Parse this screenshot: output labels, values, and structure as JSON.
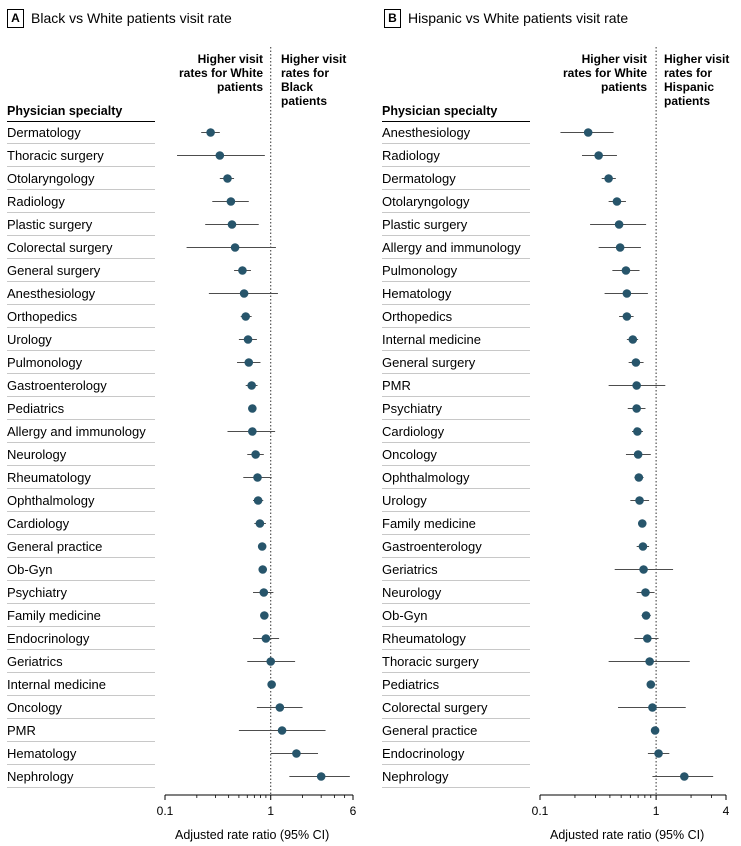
{
  "chart_data": [
    {
      "type": "forest",
      "panel_label": "A",
      "title": "Black vs White patients visit rate",
      "column_header": "Physician specialty",
      "favor_left": "Higher visit rates for White patients",
      "favor_right": "Higher visit rates for Black patients",
      "xlabel": "Adjusted rate ratio (95% CI)",
      "xscale": "log",
      "xlim": [
        0.1,
        6
      ],
      "xticks": [
        0.1,
        1,
        6
      ],
      "xtick_labels": [
        "0.1",
        "1",
        "6"
      ],
      "reference_line": 1,
      "rows": [
        {
          "label": "Dermatology",
          "estimate": 0.27,
          "ci_low": 0.22,
          "ci_high": 0.33
        },
        {
          "label": "Thoracic surgery",
          "estimate": 0.33,
          "ci_low": 0.13,
          "ci_high": 0.88
        },
        {
          "label": "Otolaryngology",
          "estimate": 0.39,
          "ci_low": 0.33,
          "ci_high": 0.45
        },
        {
          "label": "Radiology",
          "estimate": 0.42,
          "ci_low": 0.28,
          "ci_high": 0.62
        },
        {
          "label": "Plastic surgery",
          "estimate": 0.43,
          "ci_low": 0.24,
          "ci_high": 0.77
        },
        {
          "label": "Colorectal surgery",
          "estimate": 0.46,
          "ci_low": 0.16,
          "ci_high": 1.12
        },
        {
          "label": "General surgery",
          "estimate": 0.54,
          "ci_low": 0.45,
          "ci_high": 0.65
        },
        {
          "label": "Anesthesiology",
          "estimate": 0.56,
          "ci_low": 0.26,
          "ci_high": 1.17
        },
        {
          "label": "Orthopedics",
          "estimate": 0.58,
          "ci_low": 0.52,
          "ci_high": 0.66
        },
        {
          "label": "Urology",
          "estimate": 0.61,
          "ci_low": 0.5,
          "ci_high": 0.74
        },
        {
          "label": "Pulmonology",
          "estimate": 0.62,
          "ci_low": 0.48,
          "ci_high": 0.8
        },
        {
          "label": "Gastroenterology",
          "estimate": 0.66,
          "ci_low": 0.58,
          "ci_high": 0.75
        },
        {
          "label": "Pediatrics",
          "estimate": 0.67,
          "ci_low": 0.62,
          "ci_high": 0.72
        },
        {
          "label": "Allergy and immunology",
          "estimate": 0.67,
          "ci_low": 0.39,
          "ci_high": 1.1
        },
        {
          "label": "Neurology",
          "estimate": 0.72,
          "ci_low": 0.6,
          "ci_high": 0.86
        },
        {
          "label": "Rheumatology",
          "estimate": 0.75,
          "ci_low": 0.55,
          "ci_high": 1.02
        },
        {
          "label": "Ophthalmology",
          "estimate": 0.76,
          "ci_low": 0.68,
          "ci_high": 0.85
        },
        {
          "label": "Cardiology",
          "estimate": 0.79,
          "ci_low": 0.7,
          "ci_high": 0.9
        },
        {
          "label": "General practice",
          "estimate": 0.83,
          "ci_low": 0.79,
          "ci_high": 0.88
        },
        {
          "label": "Ob-Gyn",
          "estimate": 0.84,
          "ci_low": 0.77,
          "ci_high": 0.92
        },
        {
          "label": "Psychiatry",
          "estimate": 0.86,
          "ci_low": 0.68,
          "ci_high": 1.06
        },
        {
          "label": "Family medicine",
          "estimate": 0.87,
          "ci_low": 0.8,
          "ci_high": 0.94
        },
        {
          "label": "Endocrinology",
          "estimate": 0.9,
          "ci_low": 0.68,
          "ci_high": 1.2
        },
        {
          "label": "Geriatrics",
          "estimate": 1.0,
          "ci_low": 0.6,
          "ci_high": 1.7
        },
        {
          "label": "Internal medicine",
          "estimate": 1.02,
          "ci_low": 0.94,
          "ci_high": 1.1
        },
        {
          "label": "Oncology",
          "estimate": 1.22,
          "ci_low": 0.74,
          "ci_high": 2.0
        },
        {
          "label": "PMR",
          "estimate": 1.28,
          "ci_low": 0.5,
          "ci_high": 3.3
        },
        {
          "label": "Hematology",
          "estimate": 1.75,
          "ci_low": 1.0,
          "ci_high": 2.8
        },
        {
          "label": "Nephrology",
          "estimate": 3.0,
          "ci_low": 1.5,
          "ci_high": 5.6
        }
      ]
    },
    {
      "type": "forest",
      "panel_label": "B",
      "title": "Hispanic vs White patients visit rate",
      "column_header": "Physician specialty",
      "favor_left": "Higher visit rates for White patients",
      "favor_right": "Higher visit rates for Hispanic patients",
      "xlabel": "Adjusted rate ratio (95% CI)",
      "xscale": "log",
      "xlim": [
        0.1,
        4
      ],
      "xticks": [
        0.1,
        1,
        4
      ],
      "xtick_labels": [
        "0.1",
        "1",
        "4"
      ],
      "reference_line": 1,
      "rows": [
        {
          "label": "Anesthesiology",
          "estimate": 0.26,
          "ci_low": 0.15,
          "ci_high": 0.43
        },
        {
          "label": "Radiology",
          "estimate": 0.32,
          "ci_low": 0.23,
          "ci_high": 0.46
        },
        {
          "label": "Dermatology",
          "estimate": 0.39,
          "ci_low": 0.34,
          "ci_high": 0.45
        },
        {
          "label": "Otolaryngology",
          "estimate": 0.46,
          "ci_low": 0.39,
          "ci_high": 0.55
        },
        {
          "label": "Plastic surgery",
          "estimate": 0.48,
          "ci_low": 0.27,
          "ci_high": 0.82
        },
        {
          "label": "Allergy and immunology",
          "estimate": 0.49,
          "ci_low": 0.32,
          "ci_high": 0.74
        },
        {
          "label": "Pulmonology",
          "estimate": 0.55,
          "ci_low": 0.42,
          "ci_high": 0.72
        },
        {
          "label": "Hematology",
          "estimate": 0.56,
          "ci_low": 0.36,
          "ci_high": 0.85
        },
        {
          "label": "Orthopedics",
          "estimate": 0.56,
          "ci_low": 0.48,
          "ci_high": 0.64
        },
        {
          "label": "Internal medicine",
          "estimate": 0.63,
          "ci_low": 0.56,
          "ci_high": 0.7
        },
        {
          "label": "General surgery",
          "estimate": 0.67,
          "ci_low": 0.58,
          "ci_high": 0.78
        },
        {
          "label": "PMR",
          "estimate": 0.68,
          "ci_low": 0.39,
          "ci_high": 1.2
        },
        {
          "label": "Psychiatry",
          "estimate": 0.68,
          "ci_low": 0.57,
          "ci_high": 0.81
        },
        {
          "label": "Cardiology",
          "estimate": 0.69,
          "ci_low": 0.62,
          "ci_high": 0.77
        },
        {
          "label": "Oncology",
          "estimate": 0.7,
          "ci_low": 0.55,
          "ci_high": 0.9
        },
        {
          "label": "Ophthalmology",
          "estimate": 0.71,
          "ci_low": 0.65,
          "ci_high": 0.78
        },
        {
          "label": "Urology",
          "estimate": 0.72,
          "ci_low": 0.6,
          "ci_high": 0.87
        },
        {
          "label": "Family medicine",
          "estimate": 0.76,
          "ci_low": 0.71,
          "ci_high": 0.81
        },
        {
          "label": "Gastroenterology",
          "estimate": 0.77,
          "ci_low": 0.68,
          "ci_high": 0.87
        },
        {
          "label": "Geriatrics",
          "estimate": 0.78,
          "ci_low": 0.44,
          "ci_high": 1.4
        },
        {
          "label": "Neurology",
          "estimate": 0.81,
          "ci_low": 0.68,
          "ci_high": 0.97
        },
        {
          "label": "Ob-Gyn",
          "estimate": 0.82,
          "ci_low": 0.75,
          "ci_high": 0.9
        },
        {
          "label": "Rheumatology",
          "estimate": 0.84,
          "ci_low": 0.65,
          "ci_high": 1.05
        },
        {
          "label": "Thoracic surgery",
          "estimate": 0.88,
          "ci_low": 0.39,
          "ci_high": 1.95
        },
        {
          "label": "Pediatrics",
          "estimate": 0.9,
          "ci_low": 0.85,
          "ci_high": 0.96
        },
        {
          "label": "Colorectal surgery",
          "estimate": 0.93,
          "ci_low": 0.47,
          "ci_high": 1.8
        },
        {
          "label": "General practice",
          "estimate": 0.98,
          "ci_low": 0.93,
          "ci_high": 1.03
        },
        {
          "label": "Endocrinology",
          "estimate": 1.05,
          "ci_low": 0.85,
          "ci_high": 1.3
        },
        {
          "label": "Nephrology",
          "estimate": 1.75,
          "ci_low": 0.93,
          "ci_high": 3.1
        }
      ]
    }
  ],
  "colors": {
    "marker": "#27556b",
    "ci_line": "#4d4d4d",
    "reference_line": "#333333",
    "row_rule": "#c8c8c8",
    "text": "#000000"
  }
}
